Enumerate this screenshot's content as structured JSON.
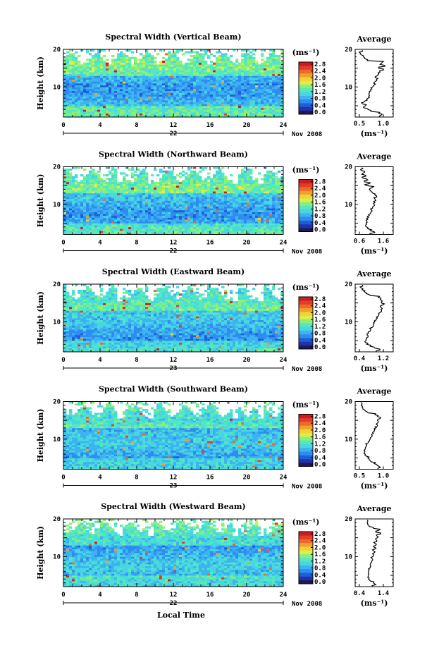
{
  "figure": {
    "footer_xlabel": "Local Time",
    "date_label": "Nov 2008",
    "colorbar_unit": "(ms⁻¹)",
    "avg_xlabel": "(ms⁻¹)",
    "avg_title": "Average",
    "ylabel": "Height (km)"
  },
  "colormap": [
    "#1e1a5a",
    "#2233aa",
    "#1c5fd8",
    "#2f8cf0",
    "#3bb4f0",
    "#49d6e0",
    "#52e8c0",
    "#8cef7a",
    "#d8f04a",
    "#f4d034",
    "#f2a02c",
    "#ee6a2a",
    "#e83a28",
    "#c81e22"
  ],
  "chart_data": [
    {
      "type": "heatmap",
      "title": "Spectral Width (Vertical Beam)",
      "ylabel": "Height (km)",
      "xlim": [
        0,
        24
      ],
      "ylim": [
        2,
        20
      ],
      "xticks": [
        0,
        4,
        8,
        12,
        16,
        20,
        24
      ],
      "yticks": [
        10,
        20
      ],
      "day_label": "22",
      "colorbar_ticks": [
        "2.8",
        "2.4",
        "2.0",
        "1.6",
        "1.2",
        "0.8",
        "0.4",
        "0.0"
      ],
      "avg_xticks": [
        "0.5",
        "1.0"
      ],
      "avg_xlim": [
        0.5,
        1.2
      ],
      "avg_profile": {
        "height": [
          2,
          2.5,
          3,
          3.5,
          4,
          4.5,
          5,
          5.5,
          6,
          6.5,
          7,
          7.5,
          8,
          8.5,
          9,
          9.5,
          10,
          10.5,
          11,
          11.5,
          12,
          12.5,
          13,
          13.5,
          14,
          14.5,
          15,
          15.5,
          16,
          16.5,
          17,
          17.5,
          18,
          18.5,
          19,
          19.5
        ],
        "value": [
          0.97,
          1.0,
          0.95,
          0.78,
          0.72,
          0.62,
          0.66,
          0.6,
          0.63,
          0.7,
          0.72,
          0.73,
          0.74,
          0.75,
          0.78,
          0.8,
          0.82,
          0.85,
          0.84,
          0.88,
          0.9,
          0.87,
          0.92,
          0.95,
          0.98,
          1.05,
          0.95,
          1.08,
          0.98,
          1.02,
          0.7,
          0.65,
          0.62,
          0.58,
          0.55,
          0.6
        ]
      }
    },
    {
      "type": "heatmap",
      "title": "Spectral Width (Northward Beam)",
      "ylabel": "Height (km)",
      "xlim": [
        0,
        24
      ],
      "ylim": [
        2,
        20
      ],
      "xticks": [
        0,
        4,
        8,
        12,
        16,
        20,
        24
      ],
      "yticks": [
        10,
        20
      ],
      "day_label": "22",
      "colorbar_ticks": [
        "2.8",
        "2.4",
        "2.0",
        "1.6",
        "1.2",
        "0.8",
        "0.4",
        "0.0"
      ],
      "avg_xticks": [
        "0.6",
        "1.6"
      ],
      "avg_xlim": [
        0.6,
        1.6
      ],
      "avg_profile": {
        "height": [
          2,
          2.5,
          3,
          3.5,
          4,
          4.5,
          5,
          5.5,
          6,
          6.5,
          7,
          7.5,
          8,
          8.5,
          9,
          9.5,
          10,
          10.5,
          11,
          11.5,
          12,
          12.5,
          13,
          13.5,
          14,
          14.5,
          15,
          15.5,
          16,
          16.5,
          17,
          17.5,
          18,
          18.5,
          19,
          19.5
        ],
        "value": [
          1.0,
          1.12,
          0.98,
          0.9,
          0.86,
          0.84,
          0.85,
          0.87,
          0.9,
          0.92,
          0.95,
          0.98,
          1.0,
          1.02,
          1.05,
          1.08,
          1.1,
          1.12,
          1.15,
          1.12,
          1.18,
          1.12,
          1.05,
          1.0,
          0.95,
          1.05,
          0.85,
          0.95,
          0.8,
          0.9,
          0.75,
          0.85,
          0.72,
          0.8,
          0.7,
          0.75
        ]
      }
    },
    {
      "type": "heatmap",
      "title": "Spectral Width (Eastward Beam)",
      "ylabel": "Height (km)",
      "xlim": [
        0,
        24
      ],
      "ylim": [
        2,
        20
      ],
      "xticks": [
        0,
        4,
        8,
        12,
        16,
        20,
        24
      ],
      "yticks": [
        10,
        20
      ],
      "day_label": "23",
      "colorbar_ticks": [
        "2.8",
        "2.4",
        "2.0",
        "1.6",
        "1.2",
        "0.8",
        "0.4",
        "0.0"
      ],
      "avg_xticks": [
        "0.4",
        "1.2"
      ],
      "avg_xlim": [
        0.4,
        1.2
      ],
      "avg_profile": {
        "height": [
          2,
          2.5,
          3,
          3.5,
          4,
          4.5,
          5,
          5.5,
          6,
          6.5,
          7,
          7.5,
          8,
          8.5,
          9,
          9.5,
          10,
          10.5,
          11,
          11.5,
          12,
          12.5,
          13,
          13.5,
          14,
          14.5,
          15,
          15.5,
          16,
          16.5,
          17,
          17.5,
          18,
          18.5,
          19,
          19.5
        ],
        "value": [
          0.85,
          0.95,
          0.82,
          0.7,
          0.62,
          0.58,
          0.6,
          0.62,
          0.65,
          0.63,
          0.66,
          0.7,
          0.72,
          0.75,
          0.78,
          0.8,
          0.82,
          0.85,
          0.88,
          0.9,
          0.92,
          0.95,
          0.98,
          1.0,
          0.95,
          1.02,
          0.98,
          1.0,
          0.95,
          0.9,
          0.7,
          0.6,
          0.55,
          0.5,
          0.48,
          0.52
        ]
      }
    },
    {
      "type": "heatmap",
      "title": "Spectral Width (Southward Beam)",
      "ylabel": "Height (km)",
      "xlim": [
        0,
        24
      ],
      "ylim": [
        2,
        20
      ],
      "xticks": [
        0,
        4,
        8,
        12,
        16,
        20,
        24
      ],
      "yticks": [
        10,
        20
      ],
      "day_label": "23",
      "colorbar_ticks": [
        "2.8",
        "2.4",
        "2.0",
        "1.6",
        "1.2",
        "0.8",
        "0.4",
        "0.0"
      ],
      "avg_xticks": [
        "0.5",
        "1.0"
      ],
      "avg_xlim": [
        0.5,
        1.3
      ],
      "avg_profile": {
        "height": [
          2,
          2.5,
          3,
          3.5,
          4,
          4.5,
          5,
          5.5,
          6,
          6.5,
          7,
          7.5,
          8,
          8.5,
          9,
          9.5,
          10,
          10.5,
          11,
          11.5,
          12,
          12.5,
          13,
          13.5,
          14,
          14.5,
          15,
          15.5,
          16,
          16.5,
          17,
          17.5,
          18,
          18.5,
          19,
          19.5
        ],
        "value": [
          1.0,
          1.05,
          0.98,
          0.9,
          0.82,
          0.78,
          0.74,
          0.7,
          0.68,
          0.66,
          0.65,
          0.68,
          0.7,
          0.72,
          0.75,
          0.78,
          0.8,
          0.82,
          0.85,
          0.88,
          0.9,
          0.92,
          0.95,
          0.98,
          0.95,
          1.0,
          0.98,
          1.05,
          0.98,
          0.92,
          0.75,
          0.68,
          0.62,
          0.6,
          0.58,
          0.6
        ]
      }
    },
    {
      "type": "heatmap",
      "title": "Spectral Width (Westward Beam)",
      "ylabel": "Height (km)",
      "xlim": [
        0,
        24
      ],
      "ylim": [
        2,
        20
      ],
      "xticks": [
        0,
        4,
        8,
        12,
        16,
        20,
        24
      ],
      "yticks": [
        10,
        20
      ],
      "day_label": "22",
      "colorbar_ticks": [
        "2.8",
        "2.4",
        "2.0",
        "1.6",
        "1.2",
        "0.8",
        "0.4",
        "0.0"
      ],
      "avg_xticks": [
        "0.4",
        "1.4"
      ],
      "avg_xlim": [
        0.4,
        1.4
      ],
      "avg_profile": {
        "height": [
          2,
          2.5,
          3,
          3.5,
          4,
          4.5,
          5,
          5.5,
          6,
          6.5,
          7,
          7.5,
          8,
          8.5,
          9,
          9.5,
          10,
          10.5,
          11,
          11.5,
          12,
          12.5,
          13,
          13.5,
          14,
          14.5,
          15,
          15.5,
          16,
          16.5,
          17,
          17.5,
          18,
          18.5,
          19,
          19.5
        ],
        "value": [
          0.85,
          0.95,
          0.88,
          0.78,
          0.72,
          0.7,
          0.72,
          0.74,
          0.72,
          0.75,
          0.78,
          0.8,
          0.78,
          0.82,
          0.85,
          0.83,
          0.86,
          0.88,
          0.9,
          0.88,
          0.92,
          0.9,
          0.95,
          0.92,
          0.98,
          0.95,
          1.0,
          0.98,
          1.1,
          0.95,
          1.05,
          0.88,
          0.75,
          0.7,
          0.68,
          0.7
        ]
      }
    }
  ]
}
